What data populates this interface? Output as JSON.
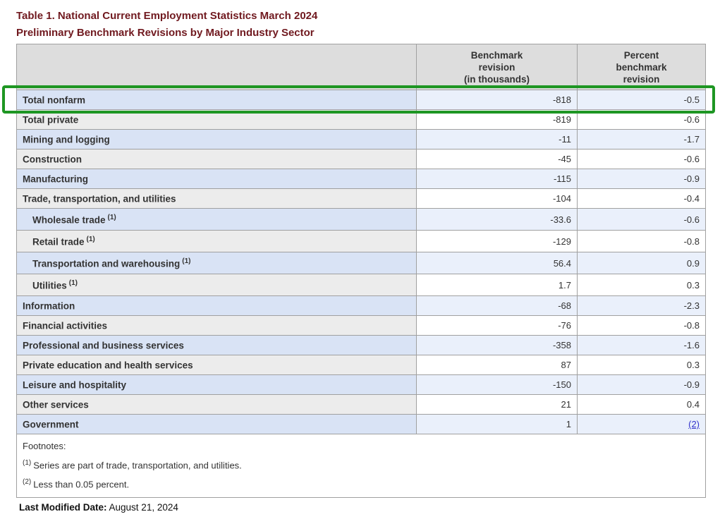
{
  "page": {
    "title_line1": "Table 1. National Current Employment Statistics March 2024",
    "title_line2": "Preliminary Benchmark Revisions by Major Industry Sector"
  },
  "table": {
    "header": {
      "industry": "",
      "benchmark": "Benchmark\nrevision\n(in thousands)",
      "percent": "Percent\nbenchmark\nrevision"
    },
    "rows": [
      {
        "label": "Total nonfarm",
        "sup": "",
        "benchmark": "-818",
        "percent": "-0.5"
      },
      {
        "label": "Total private",
        "sup": "",
        "benchmark": "-819",
        "percent": "-0.6"
      },
      {
        "label": "Mining and logging",
        "sup": "",
        "benchmark": "-11",
        "percent": "-1.7"
      },
      {
        "label": "Construction",
        "sup": "",
        "benchmark": "-45",
        "percent": "-0.6"
      },
      {
        "label": "Manufacturing",
        "sup": "",
        "benchmark": "-115",
        "percent": "-0.9"
      },
      {
        "label": "Trade, transportation, and utilities",
        "sup": "",
        "benchmark": "-104",
        "percent": "-0.4"
      },
      {
        "label": "Wholesale trade",
        "sup": "(1)",
        "benchmark": "-33.6",
        "percent": "-0.6"
      },
      {
        "label": "Retail trade",
        "sup": "(1)",
        "benchmark": "-129",
        "percent": "-0.8"
      },
      {
        "label": "Transportation and warehousing",
        "sup": "(1)",
        "benchmark": "56.4",
        "percent": "0.9"
      },
      {
        "label": "Utilities",
        "sup": "(1)",
        "benchmark": "1.7",
        "percent": "0.3"
      },
      {
        "label": "Information",
        "sup": "",
        "benchmark": "-68",
        "percent": "-2.3"
      },
      {
        "label": "Financial activities",
        "sup": "",
        "benchmark": "-76",
        "percent": "-0.8"
      },
      {
        "label": "Professional and business services",
        "sup": "",
        "benchmark": "-358",
        "percent": "-1.6"
      },
      {
        "label": "Private education and health services",
        "sup": "",
        "benchmark": "87",
        "percent": "0.3"
      },
      {
        "label": "Leisure and hospitality",
        "sup": "",
        "benchmark": "-150",
        "percent": "-0.9"
      },
      {
        "label": "Other services",
        "sup": "",
        "benchmark": "21",
        "percent": "0.4"
      },
      {
        "label": "Government",
        "sup": "",
        "benchmark": "1",
        "percent": "(2)"
      }
    ],
    "footnotes": {
      "heading": "Footnotes:",
      "items": [
        {
          "marker": "(1)",
          "text": "Series are part of trade, transportation, and utilities."
        },
        {
          "marker": "(2)",
          "text": "Less than 0.05 percent."
        }
      ]
    }
  },
  "highlight": {
    "target_row": "Total nonfarm",
    "color": "#1e9623"
  },
  "footer": {
    "label": "Last Modified Date:",
    "value": "August 21, 2024"
  },
  "colors": {
    "title_maroon": "#70191f",
    "header_bg": "#dddddd",
    "row_blue_label": "#d9e3f5",
    "row_blue_value": "#eaf0fb",
    "row_gray_label": "#ececec",
    "row_white_value": "#ffffff",
    "cell_border": "#a0a0a0",
    "link_blue": "#3333cc",
    "highlight_green": "#1e9623"
  }
}
